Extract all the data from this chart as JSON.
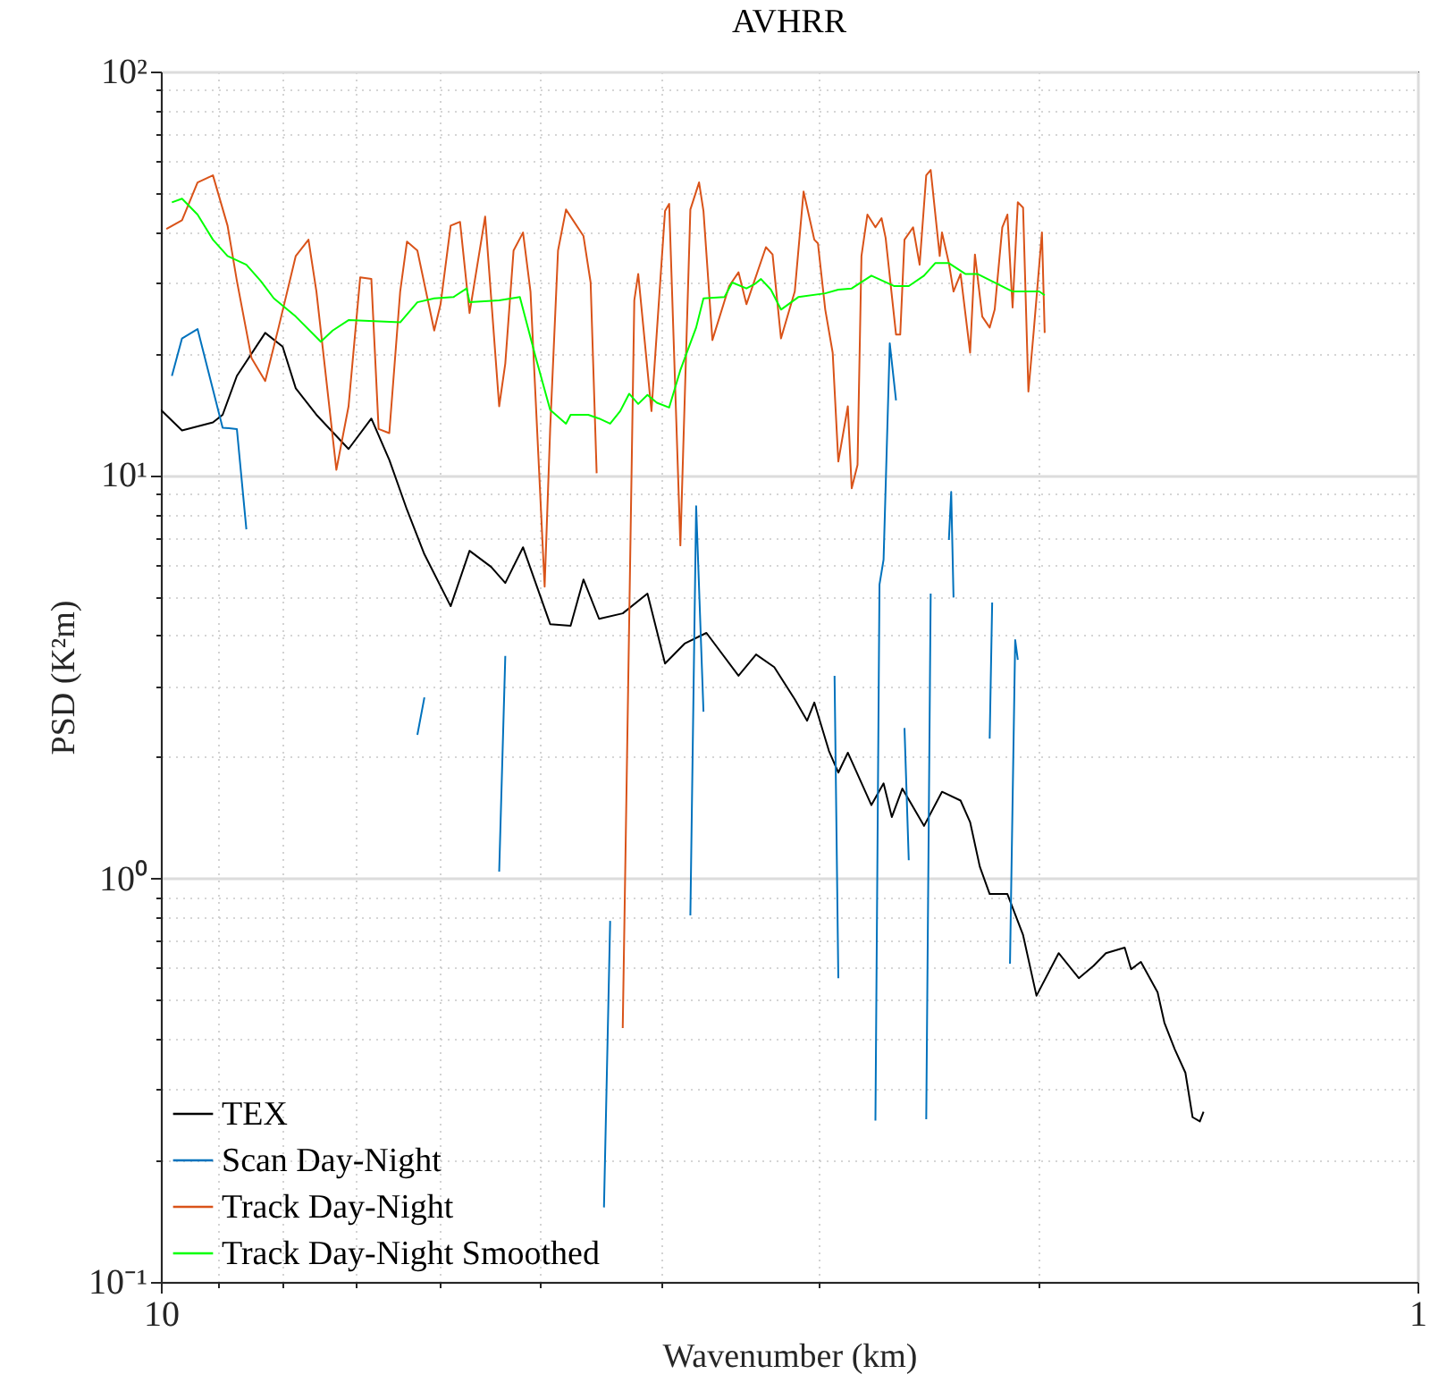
{
  "chart_data": {
    "type": "line",
    "title": "AVHRR",
    "xlabel": "Wavenumber (km)",
    "ylabel": "PSD (K²m)",
    "log": "xy",
    "grid": true,
    "legend": "bottom left",
    "xlim": [
      10,
      1
    ],
    "ylim": [
      0.1,
      100
    ],
    "xticks": [
      10,
      {
        "value": 9,
        "label": null
      },
      {
        "value": 8,
        "label": null
      },
      {
        "value": 7,
        "label": null
      },
      {
        "value": 6,
        "label": null
      },
      {
        "value": 5,
        "label": null
      },
      {
        "value": 4,
        "label": null
      },
      {
        "value": 3,
        "label": null
      },
      {
        "value": 2,
        "label": null
      },
      1
    ],
    "yticks": [
      {
        "value": 0.1,
        "label": "10⁻¹"
      },
      {
        "value": 0.2,
        "label": null
      },
      {
        "value": 0.3,
        "label": null
      },
      {
        "value": 0.4,
        "label": null
      },
      {
        "value": 0.5,
        "label": null
      },
      {
        "value": 0.6,
        "label": null
      },
      {
        "value": 0.7,
        "label": null
      },
      {
        "value": 0.8,
        "label": null
      },
      {
        "value": 0.9,
        "label": null
      },
      {
        "value": 1,
        "label": "10⁰"
      },
      {
        "value": 2,
        "label": null
      },
      {
        "value": 3,
        "label": null
      },
      {
        "value": 4,
        "label": null
      },
      {
        "value": 5,
        "label": null
      },
      {
        "value": 6,
        "label": null
      },
      {
        "value": 7,
        "label": null
      },
      {
        "value": 8,
        "label": null
      },
      {
        "value": 9,
        "label": null
      },
      {
        "value": 10,
        "label": "10¹"
      },
      {
        "value": 20,
        "label": null
      },
      {
        "value": 30,
        "label": null
      },
      {
        "value": 40,
        "label": null
      },
      {
        "value": 50,
        "label": null
      },
      {
        "value": 60,
        "label": null
      },
      {
        "value": 70,
        "label": null
      },
      {
        "value": 80,
        "label": null
      },
      {
        "value": 90,
        "label": null
      },
      {
        "value": 100,
        "label": "10²"
      }
    ],
    "series": [
      {
        "name": "TEX",
        "color": "#000000",
        "x": [
          10.0,
          9.62,
          9.09,
          8.93,
          8.7,
          8.26,
          8.0,
          7.81,
          7.52,
          7.09,
          6.8,
          6.58,
          6.37,
          6.17,
          5.88,
          5.68,
          5.46,
          5.32,
          5.15,
          4.9,
          4.72,
          4.61,
          4.48,
          4.29,
          4.1,
          3.97,
          3.83,
          3.68,
          3.47,
          3.36,
          3.25,
          3.13,
          3.06,
          3.02,
          2.94,
          2.89,
          2.84,
          2.72,
          2.66,
          2.62,
          2.57,
          2.47,
          2.39,
          2.31,
          2.27,
          2.23,
          2.19,
          2.12,
          2.06,
          2.01,
          1.93,
          1.86,
          1.81,
          1.77,
          1.71,
          1.69,
          1.66,
          1.61,
          1.59,
          1.56,
          1.53,
          1.51,
          1.49,
          1.48
        ],
        "values": [
          14.5,
          12.9,
          13.5,
          14.1,
          17.6,
          22.5,
          20.8,
          16.4,
          14.1,
          11.6,
          13.8,
          10.9,
          8.2,
          6.36,
          4.73,
          6.49,
          5.92,
          5.4,
          6.62,
          4.27,
          4.23,
          5.51,
          4.4,
          4.54,
          5.08,
          3.41,
          3.82,
          4.06,
          3.18,
          3.59,
          3.34,
          2.78,
          2.46,
          2.73,
          2.07,
          1.83,
          2.05,
          1.52,
          1.72,
          1.42,
          1.67,
          1.35,
          1.64,
          1.56,
          1.38,
          1.07,
          0.915,
          0.915,
          0.724,
          0.512,
          0.653,
          0.566,
          0.608,
          0.653,
          0.674,
          0.596,
          0.621,
          0.522,
          0.439,
          0.377,
          0.33,
          0.256,
          0.25,
          0.264
        ]
      },
      {
        "name": "Scan Day-Night",
        "color": "#0072bd",
        "x": [
          9.8,
          9.62,
          9.35,
          8.93,
          8.7,
          8.55,
          null,
          6.25,
          6.17,
          null,
          5.38,
          5.32,
          null,
          4.44,
          4.39,
          null,
          3.79,
          3.75,
          3.7,
          null,
          2.91,
          2.89,
          null,
          2.7,
          2.68,
          2.66,
          2.63,
          2.6,
          null,
          2.56,
          2.54,
          null,
          2.46,
          2.44,
          null,
          2.36,
          2.35,
          2.34,
          null,
          2.19,
          2.18,
          null,
          2.11,
          2.09,
          2.08
        ],
        "values": [
          17.6,
          21.8,
          23.0,
          13.1,
          13.0,
          7.33,
          null,
          2.27,
          2.81,
          null,
          1.04,
          3.56,
          null,
          0.153,
          0.785,
          null,
          0.81,
          8.37,
          2.59,
          null,
          3.18,
          0.566,
          null,
          0.251,
          5.35,
          6.17,
          21.2,
          15.3,
          null,
          2.36,
          1.11,
          null,
          0.253,
          5.08,
          null,
          6.9,
          9.08,
          4.97,
          null,
          2.22,
          4.83,
          null,
          0.615,
          3.9,
          3.48
        ]
      },
      {
        "name": "Track Day-Night",
        "color": "#d95319",
        "x": [
          9.9,
          9.62,
          9.35,
          9.09,
          8.85,
          8.7,
          8.47,
          8.26,
          8.06,
          7.81,
          7.63,
          7.52,
          7.25,
          7.09,
          6.94,
          6.8,
          6.71,
          6.58,
          6.45,
          6.37,
          6.25,
          6.06,
          5.99,
          5.88,
          5.78,
          5.68,
          5.52,
          5.38,
          5.32,
          5.24,
          5.15,
          5.08,
          4.95,
          4.9,
          4.83,
          4.76,
          4.61,
          4.55,
          4.5,
          null,
          4.29,
          4.2,
          4.17,
          4.07,
          3.97,
          3.94,
          3.86,
          3.79,
          3.73,
          3.7,
          3.64,
          3.53,
          3.47,
          3.42,
          3.3,
          3.26,
          3.21,
          3.13,
          3.08,
          3.02,
          3.0,
          2.96,
          2.92,
          2.89,
          2.84,
          2.82,
          2.79,
          2.77,
          2.74,
          2.7,
          2.67,
          2.65,
          2.6,
          2.58,
          2.56,
          2.52,
          2.49,
          2.46,
          2.44,
          2.4,
          2.39,
          2.36,
          2.34,
          2.31,
          2.27,
          2.25,
          2.22,
          2.19,
          2.17,
          2.14,
          2.12,
          2.1,
          2.08,
          2.06,
          2.04,
          2.02,
          1.99,
          1.98
        ],
        "values": [
          40.7,
          42.8,
          53.1,
          55.3,
          41.5,
          30.3,
          19.5,
          17.1,
          23.2,
          34.9,
          38.3,
          28.5,
          10.3,
          14.8,
          30.9,
          30.6,
          13.0,
          12.7,
          28.5,
          37.9,
          36.0,
          22.8,
          26.5,
          41.5,
          42.4,
          25.2,
          43.7,
          14.8,
          18.9,
          36.0,
          39.9,
          28.5,
          5.29,
          13.0,
          36.0,
          45.5,
          39.1,
          30.0,
          10.1,
          null,
          0.426,
          27.1,
          31.5,
          14.4,
          45.1,
          47.0,
          6.69,
          45.5,
          53.1,
          45.1,
          21.6,
          29.4,
          31.8,
          26.5,
          36.7,
          35.2,
          21.8,
          28.5,
          50.4,
          38.3,
          37.5,
          25.7,
          20.1,
          10.8,
          14.8,
          9.27,
          10.6,
          34.9,
          44.2,
          41.1,
          43.3,
          38.7,
          22.3,
          22.3,
          38.3,
          41.1,
          33.2,
          55.3,
          57.0,
          34.9,
          39.9,
          33.5,
          28.5,
          31.5,
          20.1,
          35.2,
          24.7,
          23.2,
          25.7,
          41.1,
          44.2,
          26.0,
          47.4,
          46.0,
          16.1,
          22.8,
          39.9,
          22.5
        ]
      },
      {
        "name": "Track Day-Night Smoothed",
        "color": "#00ff00",
        "x": [
          9.8,
          9.62,
          9.35,
          9.09,
          8.85,
          8.55,
          8.33,
          8.13,
          7.81,
          7.46,
          7.3,
          7.09,
          6.45,
          6.25,
          6.06,
          5.85,
          5.71,
          5.68,
          5.38,
          5.18,
          5.03,
          4.9,
          4.76,
          4.72,
          4.57,
          4.48,
          4.39,
          4.31,
          4.24,
          4.17,
          4.1,
          4.03,
          3.94,
          3.86,
          3.75,
          3.7,
          3.56,
          3.51,
          3.42,
          3.37,
          3.33,
          3.27,
          3.21,
          3.11,
          2.96,
          2.89,
          2.82,
          2.72,
          2.61,
          2.54,
          2.47,
          2.42,
          2.36,
          2.29,
          2.24,
          2.1,
          2.0,
          1.98
        ],
        "values": [
          47.4,
          48.4,
          44.2,
          38.3,
          34.9,
          33.2,
          30.3,
          27.4,
          24.7,
          21.4,
          22.8,
          24.2,
          23.9,
          26.8,
          27.4,
          27.6,
          29.0,
          26.8,
          27.1,
          27.6,
          19.5,
          14.5,
          13.4,
          14.1,
          14.1,
          13.8,
          13.4,
          14.4,
          15.9,
          15.0,
          15.8,
          15.1,
          14.7,
          18.2,
          23.2,
          27.4,
          27.6,
          30.0,
          29.0,
          29.7,
          30.6,
          28.8,
          25.7,
          27.6,
          28.2,
          28.8,
          29.0,
          31.2,
          29.4,
          29.4,
          31.2,
          33.5,
          33.5,
          31.5,
          31.5,
          28.5,
          28.5,
          27.9
        ]
      }
    ]
  }
}
